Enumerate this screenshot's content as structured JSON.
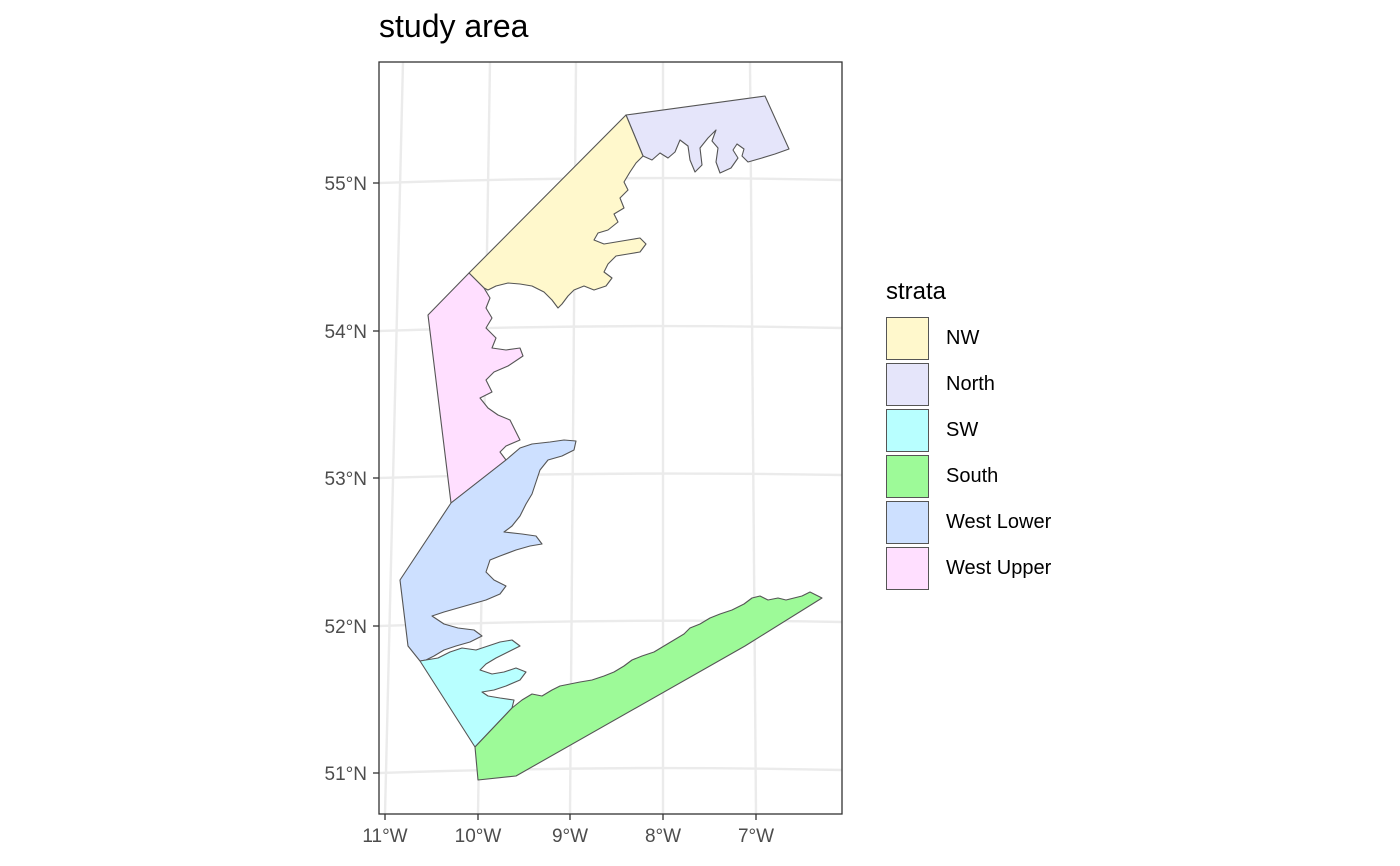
{
  "title": "study area",
  "axes": {
    "lat_ticks": [
      "55°N",
      "54°N",
      "53°N",
      "52°N",
      "51°N"
    ],
    "lon_ticks": [
      "11°W",
      "10°W",
      "9°W",
      "8°W",
      "7°W"
    ]
  },
  "legend": {
    "title": "strata",
    "items": [
      {
        "label": "NW",
        "color": "#fff8cc"
      },
      {
        "label": "North",
        "color": "#e5e5fa"
      },
      {
        "label": "SW",
        "color": "#b8ffff"
      },
      {
        "label": "South",
        "color": "#9dfa98"
      },
      {
        "label": "West Lower",
        "color": "#cde0ff"
      },
      {
        "label": "West Upper",
        "color": "#ffdfff"
      }
    ]
  },
  "graticule": true,
  "projection": "conic (curved graticule)"
}
